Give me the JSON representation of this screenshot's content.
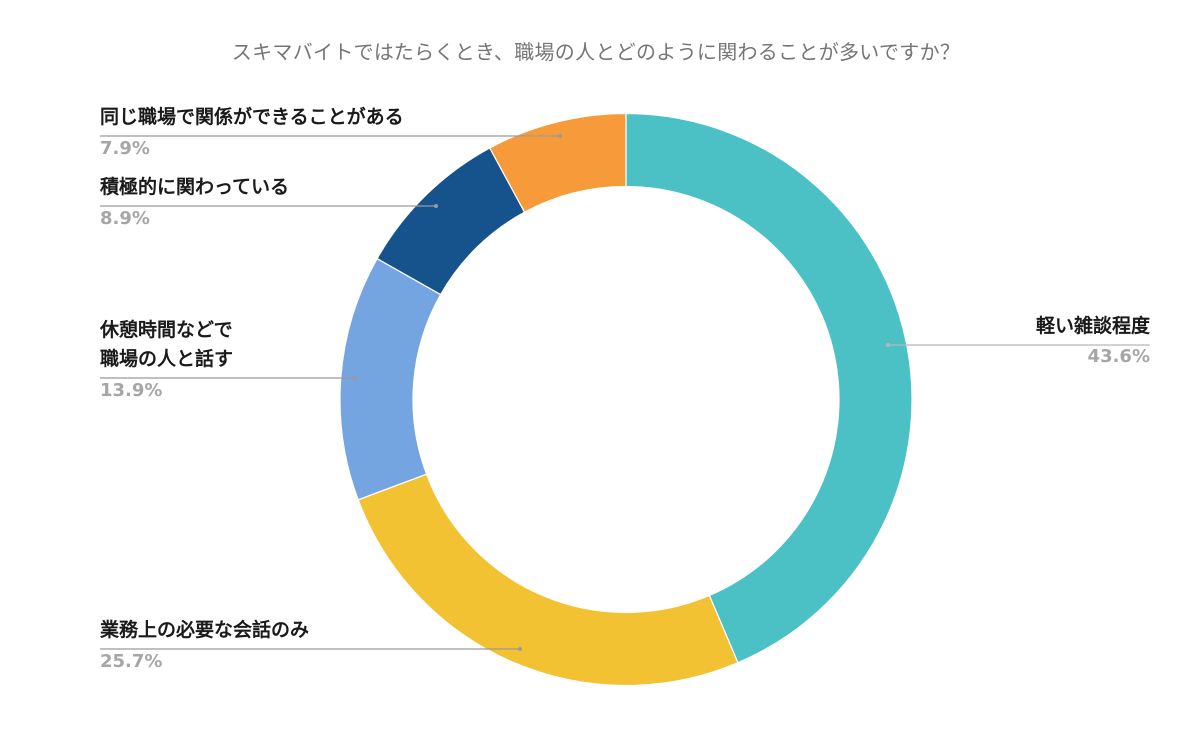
{
  "chart_data": {
    "type": "pie",
    "variant": "donut",
    "title": "スキマバイトではたらくとき、職場の人とどのように関わることが多いですか？",
    "categories": [
      "軽い雑談程度",
      "業務上の必要な会話のみ",
      "休憩時間などで職場の人と話す",
      "積極的に関わっている",
      "同じ職場で関係ができることがある"
    ],
    "values": [
      43.6,
      25.7,
      13.9,
      8.9,
      7.9
    ],
    "unit": "%",
    "colors": [
      "#4BC0C5",
      "#F2C233",
      "#75A5E0",
      "#16538C",
      "#F69A3A"
    ],
    "start_angle": "12 o'clock",
    "direction": "clockwise",
    "legend": "none (leader-line labels)"
  },
  "title": "スキマバイトではたらくとき、職場の人とどのように関わることが多いですか？",
  "labels": [
    {
      "text": "軽い雑談程度",
      "pct": "43.6%"
    },
    {
      "text": "業務上の必要な会話のみ",
      "pct": "25.7%"
    },
    {
      "text": "休憩時間などで\n職場の人と話す",
      "pct": "13.9%"
    },
    {
      "text": "積極的に関わっている",
      "pct": "8.9%"
    },
    {
      "text": "同じ職場で関係ができることがある",
      "pct": "7.9%"
    }
  ]
}
